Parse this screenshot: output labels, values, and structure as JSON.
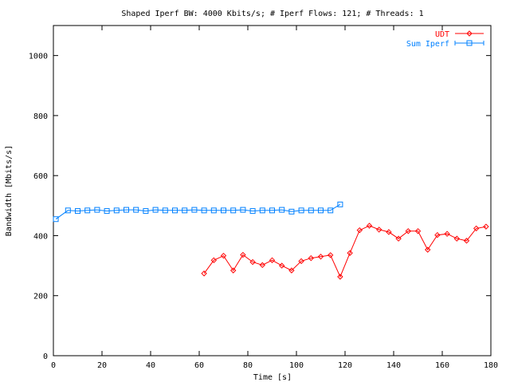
{
  "chart_data": {
    "type": "line",
    "title": "Shaped Iperf BW: 4000 Kbits/s; # Iperf Flows: 121; # Threads: 1",
    "xlabel": "Time [s]",
    "ylabel": "Bandwidth [Mbits/s]",
    "xlim": [
      0,
      180
    ],
    "ylim": [
      0,
      1100
    ],
    "x_ticks": [
      0,
      20,
      40,
      60,
      80,
      100,
      120,
      140,
      160,
      180
    ],
    "y_ticks": [
      0,
      200,
      400,
      600,
      800,
      1000
    ],
    "x_tick_labels": [
      "0",
      "20",
      "40",
      "60",
      "80",
      "100",
      "120",
      "140",
      "160",
      "180"
    ],
    "y_tick_labels": [
      "0",
      "200",
      "400",
      "600",
      "800",
      "1000"
    ],
    "grid": false,
    "legend_position": "top-right",
    "series": [
      {
        "name": "UDT",
        "color": "#ff0000",
        "marker": "diamond",
        "x": [
          62,
          66,
          70,
          74,
          78,
          82,
          86,
          90,
          94,
          98,
          102,
          106,
          110,
          114,
          118,
          122,
          126,
          130,
          134,
          138,
          142,
          146,
          150,
          154,
          158,
          162,
          166,
          170,
          174,
          178
        ],
        "y": [
          274,
          318,
          333,
          284,
          336,
          312,
          302,
          318,
          300,
          284,
          315,
          325,
          330,
          335,
          263,
          342,
          418,
          433,
          420,
          412,
          390,
          415,
          415,
          353,
          402,
          406,
          390,
          383,
          424,
          430
        ]
      },
      {
        "name": "Sum Iperf",
        "color": "#0080ff",
        "marker": "square",
        "x": [
          1,
          6,
          10,
          14,
          18,
          22,
          26,
          30,
          34,
          38,
          42,
          46,
          50,
          54,
          58,
          62,
          66,
          70,
          74,
          78,
          82,
          86,
          90,
          94,
          98,
          102,
          106,
          110,
          114,
          118
        ],
        "y": [
          455,
          484,
          482,
          484,
          486,
          482,
          484,
          486,
          486,
          482,
          486,
          484,
          484,
          484,
          486,
          484,
          484,
          484,
          484,
          486,
          482,
          484,
          484,
          486,
          480,
          484,
          484,
          484,
          484,
          504
        ]
      }
    ]
  }
}
